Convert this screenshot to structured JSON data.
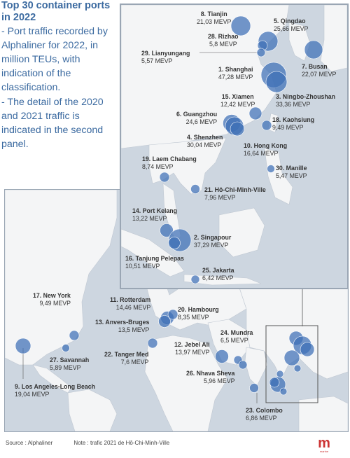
{
  "intro": {
    "title": "Top 30 container ports in 2022",
    "desc1": "- Port traffic recorded by Alphaliner for 2022, in million TEUs, with indication of the classification.",
    "desc2": "- The detail of the 2020 and 2021 traffic is indicated in the second panel."
  },
  "ports": {
    "tianjin": {
      "name": "8. Tianjin",
      "value": "21,03 MEVP"
    },
    "qingdao": {
      "name": "5. Qingdao",
      "value": "25,66 MEVP"
    },
    "rizhao": {
      "name": "28. Rizhao",
      "value": "5,8 MEVP"
    },
    "lianyungang": {
      "name": "29. Lianyungang",
      "value": "5,57 MEVP"
    },
    "busan": {
      "name": "7. Busan",
      "value": "22,07 MEVP"
    },
    "shanghai": {
      "name": "1. Shanghai",
      "value": "47,28 MEVP"
    },
    "ningbo": {
      "name": "3. Ningbo-Zhoushan",
      "value": "33,36 MEVP"
    },
    "xiamen": {
      "name": "15. Xiamen",
      "value": "12,42 MEVP"
    },
    "guangzhou": {
      "name": "6. Guangzhou",
      "value": "24,6 MEVP"
    },
    "kaohsiung": {
      "name": "18. Kaohsiung",
      "value": "9,49 MEVP"
    },
    "shenzhen": {
      "name": "4. Shenzhen",
      "value": "30,04 MEVP"
    },
    "hongkong": {
      "name": "10. Hong Kong",
      "value": "16,64 MEVP"
    },
    "laemchabang": {
      "name": "19. Laem Chabang",
      "value": "8,74 MEVP"
    },
    "manille": {
      "name": "30. Manille",
      "value": "5,47 MEVP"
    },
    "hochiminh": {
      "name": "21. Hô-Chi-Minh-Ville",
      "value": "7,96 MEVP"
    },
    "portkelang": {
      "name": "14. Port Kelang",
      "value": "13,22 MEVP"
    },
    "singapour": {
      "name": "2. Singapour",
      "value": "37,29 MEVP"
    },
    "tanjung": {
      "name": "16. Tanjung Pelepas",
      "value": "10,51 MEVP"
    },
    "jakarta": {
      "name": "25. Jakarta",
      "value": "6,42 MEVP"
    },
    "rotterdam": {
      "name": "11. Rotterdam",
      "value": "14,46 MEVP"
    },
    "hambourg": {
      "name": "20. Hambourg",
      "value": "8,35 MEVP"
    },
    "anvers": {
      "name": "13. Anvers-Bruges",
      "value": "13,5 MEVP"
    },
    "newyork": {
      "name": "17. New York",
      "value": "9,49 MEVP"
    },
    "savannah": {
      "name": "27. Savannah",
      "value": "5,89 MEVP"
    },
    "tangermed": {
      "name": "22. Tanger Med",
      "value": "7,6 MEVP"
    },
    "jebelali": {
      "name": "12. Jebel Ali",
      "value": "13,97 MEVP"
    },
    "mundra": {
      "name": "24. Mundra",
      "value": "6,5 MEVP"
    },
    "nhavasheva": {
      "name": "26. Nhava Sheva",
      "value": "5,96 MEVP"
    },
    "colombo": {
      "name": "23. Colombo",
      "value": "6,86 MEVP"
    },
    "losangeles": {
      "name": "9. Los Angeles-Long Beach",
      "value": "19,04 MEVP"
    }
  },
  "footer": {
    "source": "Source : Alphaliner",
    "note": "Note : trafic 2021 de Hô-Chi-Minh-Ville"
  },
  "logo": {
    "mark": "m",
    "text": "marine"
  },
  "colors": {
    "ocean": "#cdd6e0",
    "land": "#f4f5f6",
    "bubble": "#3d6fb5",
    "title": "#3b6aa0",
    "accent": "#cc3333"
  }
}
